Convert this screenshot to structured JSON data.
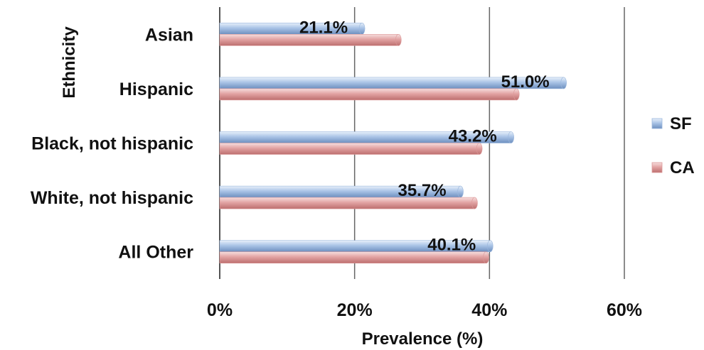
{
  "chart_data": {
    "type": "bar",
    "orientation": "horizontal",
    "categories": [
      "Asian",
      "Hispanic",
      "Black, not hispanic",
      "White, not hispanic",
      "All Other"
    ],
    "series": [
      {
        "name": "SF",
        "values": [
          21.1,
          51.0,
          43.2,
          35.7,
          40.1
        ],
        "color": "#9bb7dc"
      },
      {
        "name": "CA",
        "values": [
          26.5,
          44.0,
          38.5,
          37.8,
          39.5
        ],
        "color": "#dc9999"
      }
    ],
    "data_labels": [
      "21.1%",
      "51.0%",
      "43.2%",
      "35.7%",
      "40.1%"
    ],
    "xlabel": "Prevalence (%)",
    "ylabel": "Ethnicity",
    "xlim": [
      0,
      60
    ],
    "x_ticks": [
      "0%",
      "20%",
      "40%",
      "60%"
    ],
    "grid": "vertical",
    "legend_position": "right"
  }
}
